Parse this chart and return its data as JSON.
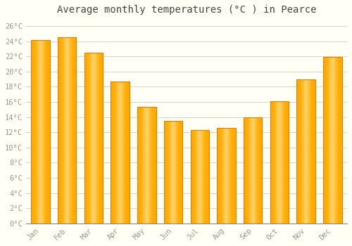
{
  "title": "Average monthly temperatures (°C ) in Pearce",
  "months": [
    "Jan",
    "Feb",
    "Mar",
    "Apr",
    "May",
    "Jun",
    "Jul",
    "Aug",
    "Sep",
    "Oct",
    "Nov",
    "Dec"
  ],
  "values": [
    24.2,
    24.5,
    22.5,
    18.7,
    15.4,
    13.5,
    12.3,
    12.6,
    14.0,
    16.1,
    19.0,
    21.9
  ],
  "bar_color": "#FFAA00",
  "bar_edge_color": "#E08000",
  "bar_highlight": "#FFD060",
  "background_color": "#FFFFF5",
  "grid_color": "#CCCCCC",
  "ylim": [
    0,
    27
  ],
  "yticks": [
    0,
    2,
    4,
    6,
    8,
    10,
    12,
    14,
    16,
    18,
    20,
    22,
    24,
    26
  ],
  "tick_label_suffix": "°C",
  "title_fontsize": 10,
  "tick_fontsize": 7.5,
  "xlabel_color": "#999999",
  "ylabel_color": "#999999"
}
